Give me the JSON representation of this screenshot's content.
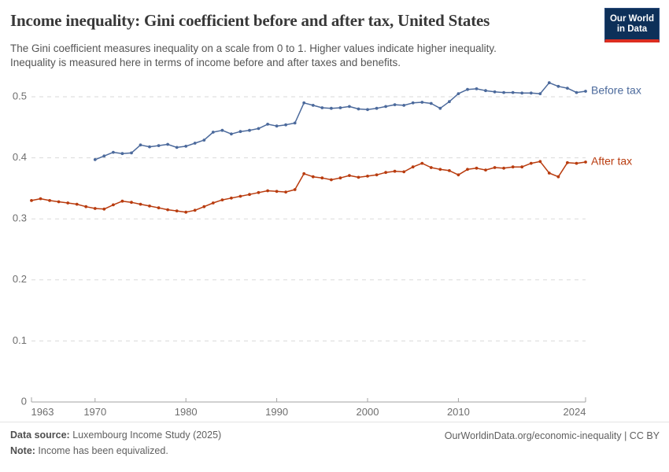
{
  "header": {
    "title": "Income inequality: Gini coefficient before and after tax, United States",
    "subtitle": "The Gini coefficient measures inequality on a scale from 0 to 1. Higher values indicate higher inequality.\nInequality is measured here in terms of income before and after taxes and benefits.",
    "logo": {
      "line1": "Our World",
      "line2": "in Data"
    }
  },
  "footer": {
    "datasource_label": "Data source:",
    "datasource_value": " Luxembourg Income Study (2025)",
    "note_label": "Note:",
    "note_value": " Income has been equivalized.",
    "link": "OurWorldinData.org/economic-inequality",
    "separator": " | ",
    "license": "CC BY"
  },
  "colors": {
    "before_tax": "#4C6A9C",
    "after_tax": "#B93C0F",
    "gridline": "#dadada",
    "axis": "#a3a3a3",
    "tick_label": "#6e6e6e"
  },
  "chart_data": {
    "type": "line",
    "title": "Income inequality: Gini coefficient before and after tax, United States",
    "xlabel": "",
    "ylabel": "",
    "xlim": [
      1963,
      2024
    ],
    "ylim": [
      0,
      0.55
    ],
    "x_ticks": [
      1963,
      1970,
      1980,
      1990,
      2000,
      2010,
      2024
    ],
    "y_ticks": [
      0,
      0.1,
      0.2,
      0.3,
      0.4,
      0.5
    ],
    "grid": true,
    "legend": "line-end-labels",
    "series": [
      {
        "name": "Before tax",
        "color": "#4C6A9C",
        "start_year": 1970,
        "step": 1,
        "values": [
          0.397,
          0.403,
          0.409,
          0.407,
          0.408,
          0.421,
          0.418,
          0.42,
          0.422,
          0.417,
          0.419,
          0.424,
          0.429,
          0.442,
          0.445,
          0.439,
          0.443,
          0.445,
          0.448,
          0.455,
          0.452,
          0.454,
          0.457,
          0.49,
          0.486,
          0.482,
          0.481,
          0.482,
          0.484,
          0.48,
          0.479,
          0.481,
          0.484,
          0.487,
          0.486,
          0.49,
          0.491,
          0.489,
          0.481,
          0.492,
          0.505,
          0.512,
          0.513,
          0.51,
          0.508,
          0.507,
          0.507,
          0.506,
          0.506,
          0.505,
          0.523,
          0.517,
          0.514,
          0.507,
          0.509
        ]
      },
      {
        "name": "After tax",
        "color": "#B93C0F",
        "start_year": 1963,
        "step": 1,
        "values": [
          0.33,
          0.333,
          0.33,
          0.328,
          0.326,
          0.324,
          0.32,
          0.317,
          0.316,
          0.323,
          0.329,
          0.327,
          0.324,
          0.321,
          0.318,
          0.315,
          0.313,
          0.311,
          0.314,
          0.32,
          0.326,
          0.331,
          0.334,
          0.337,
          0.34,
          0.343,
          0.346,
          0.345,
          0.344,
          0.348,
          0.374,
          0.369,
          0.367,
          0.364,
          0.367,
          0.371,
          0.368,
          0.37,
          0.372,
          0.376,
          0.378,
          0.377,
          0.385,
          0.391,
          0.384,
          0.381,
          0.379,
          0.372,
          0.381,
          0.383,
          0.38,
          0.384,
          0.383,
          0.385,
          0.385,
          0.391,
          0.394,
          0.375,
          0.369,
          0.392,
          0.391,
          0.393
        ]
      }
    ]
  }
}
